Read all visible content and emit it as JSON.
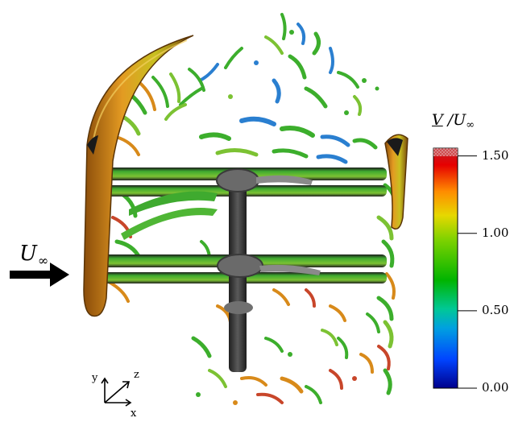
{
  "inflow": {
    "symbol": "U",
    "subscript": "∞"
  },
  "colorbar": {
    "label_numerator": "V",
    "label_sep": " /",
    "label_denominator": "U",
    "label_denominator_sub": "∞",
    "ticks": [
      "1.50",
      "1.00",
      "0.50",
      "0.00"
    ],
    "tick_values": [
      1.5,
      1.0,
      0.5,
      0.0
    ],
    "range": [
      0.0,
      1.55
    ],
    "colors": [
      "#00008c",
      "#0044ff",
      "#00c8c8",
      "#00b400",
      "#7fd200",
      "#e6d800",
      "#ff8c00",
      "#e60000",
      "#c0202a"
    ]
  },
  "axes_triad": {
    "x": "x",
    "y": "y",
    "z": "z"
  },
  "colors": {
    "blade_orange": "#d88a1a",
    "blade_dark": "#6a3a08",
    "shaft": "#3c3c3c",
    "arm_green": "#2f8f2a",
    "vortex_green": "#3cae2c",
    "vortex_blue": "#2a7fd0",
    "vortex_red": "#c8462a"
  }
}
